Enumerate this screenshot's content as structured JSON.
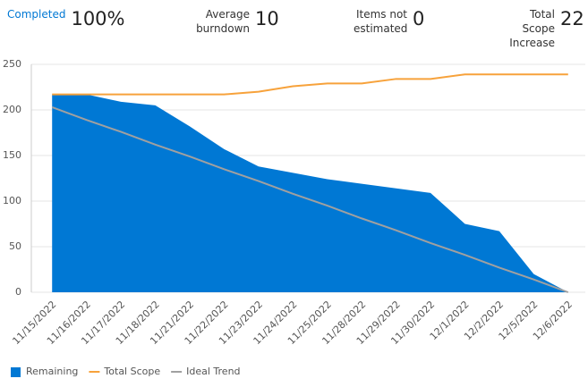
{
  "header": {
    "stats": [
      {
        "label": "Completed",
        "value": "100%"
      },
      {
        "label": "Average burndown",
        "value": "10"
      },
      {
        "label": "Items not estimated",
        "value": "0"
      },
      {
        "label": "Total Scope Increase",
        "value": "22"
      }
    ]
  },
  "chart_data": {
    "type": "burndown",
    "categories": [
      "11/15/2022",
      "11/16/2022",
      "11/17/2022",
      "11/18/2022",
      "11/21/2022",
      "11/22/2022",
      "11/23/2022",
      "11/24/2022",
      "11/25/2022",
      "11/28/2022",
      "11/29/2022",
      "11/30/2022",
      "12/1/2022",
      "12/2/2022",
      "12/5/2022",
      "12/6/2022"
    ],
    "series": [
      {
        "name": "Remaining",
        "color": "#0078d4",
        "style": "area",
        "values": [
          217,
          217,
          209,
          205,
          182,
          157,
          138,
          131,
          124,
          119,
          114,
          109,
          75,
          67,
          20,
          0
        ]
      },
      {
        "name": "Total Scope",
        "color": "#f7a23b",
        "style": "line",
        "values": [
          217,
          217,
          217,
          217,
          217,
          217,
          220,
          226,
          229,
          229,
          234,
          234,
          239,
          239,
          239,
          239
        ]
      },
      {
        "name": "Ideal Trend",
        "color": "#a0a0a0",
        "style": "line",
        "values": [
          203,
          189,
          176,
          162,
          149,
          135,
          122,
          108,
          95,
          81,
          68,
          54,
          41,
          27,
          14,
          0
        ]
      }
    ],
    "ylim": [
      0,
      250
    ],
    "yticks": [
      0,
      50,
      100,
      150,
      200,
      250
    ],
    "grid": true,
    "legend": "bottom-left"
  }
}
